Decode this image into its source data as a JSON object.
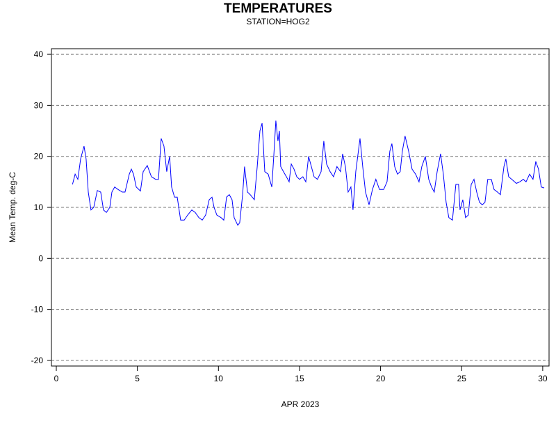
{
  "chart_data": {
    "type": "line",
    "title": "TEMPERATURES",
    "subtitle": "STATION=HOG2",
    "xlabel": "APR 2023",
    "ylabel": "Mean Temp. deg-C",
    "xlim": [
      -0.3,
      30.39
    ],
    "ylim": [
      -21.1,
      41.1
    ],
    "xticks": [
      0,
      5,
      10,
      15,
      20,
      25,
      30
    ],
    "yticks": [
      -20,
      -10,
      0,
      10,
      20,
      30,
      40
    ],
    "grid": true,
    "x": [
      1.0,
      1.16,
      1.33,
      1.5,
      1.71,
      1.84,
      1.97,
      2.14,
      2.31,
      2.53,
      2.74,
      2.91,
      3.09,
      3.3,
      3.43,
      3.6,
      3.81,
      4.07,
      4.24,
      4.5,
      4.63,
      4.76,
      4.93,
      5.19,
      5.36,
      5.61,
      5.87,
      6.13,
      6.3,
      6.47,
      6.64,
      6.81,
      6.99,
      7.11,
      7.29,
      7.46,
      7.67,
      7.89,
      8.1,
      8.36,
      8.57,
      8.79,
      9.0,
      9.21,
      9.43,
      9.6,
      9.73,
      9.9,
      10.16,
      10.33,
      10.5,
      10.67,
      10.84,
      10.97,
      11.19,
      11.31,
      11.49,
      11.61,
      11.79,
      11.96,
      12.21,
      12.39,
      12.56,
      12.69,
      12.86,
      13.07,
      13.29,
      13.41,
      13.54,
      13.67,
      13.76,
      13.84,
      14.01,
      14.19,
      14.36,
      14.49,
      14.66,
      14.83,
      15.0,
      15.21,
      15.39,
      15.56,
      15.73,
      15.9,
      16.11,
      16.33,
      16.5,
      16.67,
      16.89,
      17.1,
      17.31,
      17.53,
      17.66,
      17.83,
      18.0,
      18.17,
      18.3,
      18.47,
      18.73,
      18.9,
      19.07,
      19.29,
      19.5,
      19.71,
      19.93,
      20.19,
      20.4,
      20.57,
      20.7,
      20.87,
      21.04,
      21.21,
      21.34,
      21.51,
      21.73,
      21.94,
      22.16,
      22.37,
      22.54,
      22.76,
      22.97,
      23.14,
      23.31,
      23.49,
      23.7,
      23.87,
      24.04,
      24.21,
      24.43,
      24.64,
      24.81,
      24.9,
      25.07,
      25.24,
      25.41,
      25.59,
      25.76,
      25.93,
      26.1,
      26.27,
      26.44,
      26.61,
      26.83,
      27.0,
      27.21,
      27.39,
      27.61,
      27.73,
      27.9,
      28.16,
      28.37,
      28.59,
      28.8,
      28.97,
      29.19,
      29.4,
      29.57,
      29.74,
      29.91,
      30.09
    ],
    "series": [
      {
        "name": "Mean Temp",
        "color": "#0000ff",
        "values": [
          14.5,
          16.5,
          15.5,
          19.5,
          22,
          19.5,
          13,
          9.5,
          10,
          13.3,
          13,
          9.5,
          9,
          10,
          13,
          14,
          13.5,
          13,
          13,
          16.5,
          17.5,
          16.5,
          14,
          13.2,
          17,
          18.2,
          16,
          15.5,
          15.5,
          23.5,
          22,
          17,
          20,
          14,
          12,
          12,
          7.5,
          7.5,
          8.5,
          9.5,
          9,
          8,
          7.5,
          8.5,
          11.5,
          12,
          10,
          8.5,
          8,
          7.5,
          12,
          12.5,
          11.5,
          8,
          6.5,
          7,
          12.5,
          18,
          13,
          12.5,
          11.5,
          18,
          25,
          26.5,
          17,
          16.5,
          14,
          20,
          27,
          23,
          25,
          18,
          17,
          16,
          15,
          18.5,
          17.5,
          16,
          15.5,
          16,
          15,
          20,
          18,
          16,
          15.5,
          17,
          23,
          18.5,
          17,
          16,
          18,
          17,
          20.5,
          18,
          13,
          14,
          9.5,
          17,
          23.5,
          18,
          13,
          10.5,
          13.5,
          15.5,
          13.5,
          13.5,
          15,
          21,
          22.5,
          18,
          16.5,
          17,
          21,
          24,
          21,
          17.5,
          16.5,
          15,
          18,
          20,
          15.5,
          14,
          13,
          17,
          20.5,
          16.5,
          11,
          8,
          7.5,
          14.5,
          14.5,
          9.5,
          11.5,
          8,
          8.5,
          14.5,
          15.5,
          13,
          11,
          10.5,
          11,
          15.5,
          15.5,
          13.5,
          13,
          12.5,
          18,
          19.5,
          16,
          15.3,
          14.7,
          15,
          15.5,
          15,
          16.5,
          15.5,
          19,
          17.5,
          14,
          13.8
        ]
      }
    ]
  }
}
